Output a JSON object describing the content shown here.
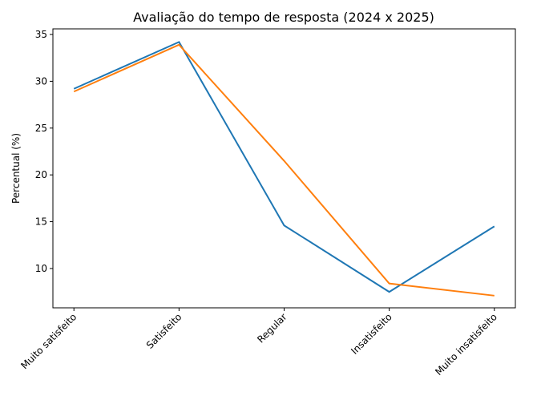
{
  "chart_data": {
    "type": "line",
    "title": "Avaliação do tempo de resposta (2024 x 2025)",
    "y_label": "Percentual (%)",
    "categories": [
      "Muito satisfeito",
      "Satisfeito",
      "Regular",
      "Insatisfeito",
      "Muito insatisfeito"
    ],
    "series": [
      {
        "color": "#1f77b4",
        "values": [
          29.2,
          34.2,
          14.6,
          7.5,
          14.5
        ]
      },
      {
        "color": "#ff7f0e",
        "values": [
          28.9,
          33.9,
          21.5,
          8.4,
          7.1
        ]
      }
    ],
    "ylim": [
      5.8,
      35.6
    ],
    "yticks": [
      10,
      15,
      20,
      25,
      30,
      35
    ],
    "grid": false
  }
}
